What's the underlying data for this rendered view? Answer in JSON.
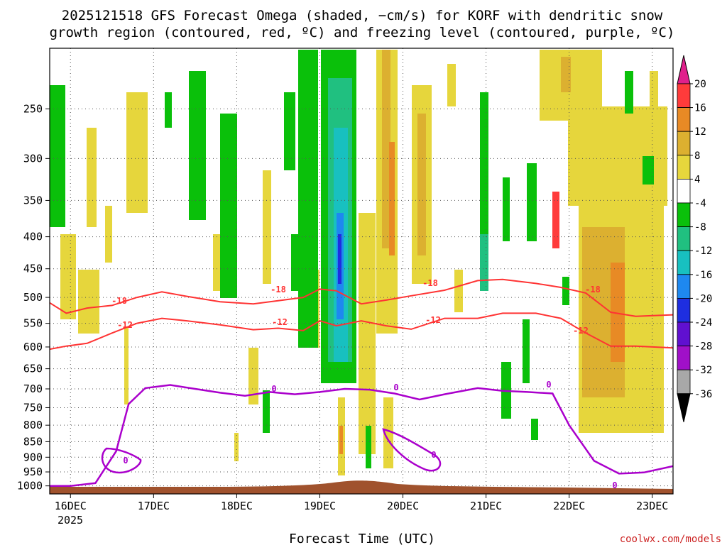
{
  "chart_data": {
    "type": "heatmap",
    "title_line1": "2025121518 GFS Forecast Omega (shaded, −cm/s) for KORF with dendritic snow",
    "title_line2": "growth region (contoured, red, ºC) and freezing level (contoured, purple, ºC)",
    "xlabel": "Forecast Time (UTC)",
    "watermark": "coolwx.com/models",
    "x_ticks": [
      "16DEC",
      "17DEC",
      "18DEC",
      "19DEC",
      "20DEC",
      "21DEC",
      "22DEC",
      "23DEC"
    ],
    "x_year": "2025",
    "y_ticks": [
      "250",
      "300",
      "350",
      "400",
      "450",
      "500",
      "550",
      "600",
      "650",
      "700",
      "750",
      "800",
      "850",
      "900",
      "950",
      "1000"
    ],
    "y_range_hpa": [
      200,
      1030
    ],
    "x_range_days": [
      15.75,
      23.25
    ],
    "colorbar_labels": [
      "20",
      "16",
      "12",
      "8",
      "4",
      "-4",
      "-8",
      "-12",
      "-16",
      "-20",
      "-24",
      "-28",
      "-32",
      "-36"
    ],
    "colors": {
      "pink": "#e0208c",
      "red": "#ff3b3b",
      "orange": "#e88a25",
      "darkyellow": "#dcb030",
      "yellow": "#e6d63c",
      "white": "#ffffff",
      "green": "#0ac00a",
      "seagreen": "#20c080",
      "teal": "#18c0c0",
      "blue": "#1e88f0",
      "darkblue": "#1e2ee0",
      "purple": "#6010d0",
      "violet": "#a010c8",
      "gray": "#a8a8a8",
      "black": "#000000",
      "dgz_line": "#ff3333",
      "freeze_line": "#aa00cc",
      "terrain": "#a0522d"
    },
    "contour_labels": {
      "minus18": "-18",
      "minus12": "-12",
      "zero": "0"
    },
    "series": [
      {
        "name": "-18C isotherm (hPa)",
        "x": [
          15.75,
          15.95,
          16.2,
          16.5,
          16.8,
          17.1,
          17.4,
          17.8,
          18.2,
          18.5,
          18.8,
          19.0,
          19.2,
          19.5,
          19.8,
          20.1,
          20.5,
          20.9,
          21.2,
          21.6,
          21.9,
          22.2,
          22.5,
          22.8,
          23.25
        ],
        "values": [
          510,
          530,
          520,
          515,
          500,
          490,
          498,
          508,
          512,
          506,
          500,
          485,
          488,
          512,
          505,
          497,
          487,
          470,
          468,
          475,
          482,
          492,
          528,
          536,
          533
        ]
      },
      {
        "name": "-12C isotherm (hPa)",
        "x": [
          15.75,
          15.95,
          16.2,
          16.5,
          16.8,
          17.1,
          17.4,
          17.8,
          18.2,
          18.5,
          18.8,
          19.0,
          19.2,
          19.5,
          19.8,
          20.1,
          20.5,
          20.9,
          21.2,
          21.6,
          21.9,
          22.2,
          22.5,
          22.8,
          23.25
        ],
        "values": [
          605,
          598,
          592,
          570,
          550,
          540,
          545,
          553,
          563,
          560,
          565,
          545,
          555,
          545,
          555,
          562,
          540,
          540,
          530,
          530,
          540,
          570,
          598,
          598,
          602
        ]
      },
      {
        "name": "0C freezing level (hPa)",
        "x": [
          15.75,
          16.0,
          16.3,
          16.55,
          16.7,
          16.9,
          17.2,
          17.5,
          17.8,
          18.1,
          18.4,
          18.7,
          19.0,
          19.3,
          19.6,
          19.9,
          20.2,
          20.5,
          20.9,
          21.2,
          21.5,
          21.8,
          22.0,
          22.3,
          22.6,
          22.9,
          23.25
        ],
        "values": [
          1000,
          1000,
          990,
          880,
          740,
          698,
          690,
          700,
          710,
          718,
          708,
          714,
          708,
          700,
          702,
          712,
          728,
          714,
          698,
          705,
          708,
          712,
          800,
          912,
          956,
          952,
          930
        ]
      }
    ]
  }
}
